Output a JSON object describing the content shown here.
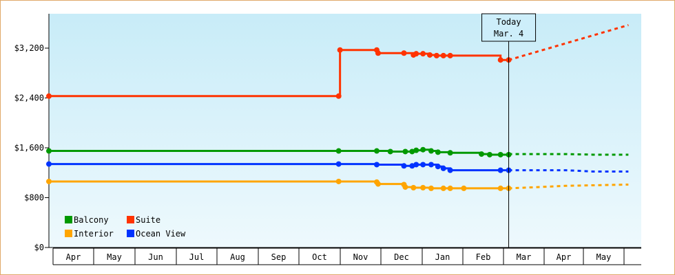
{
  "chart_data": {
    "type": "line",
    "title": "",
    "xlabel": "",
    "ylabel": "",
    "ylim": [
      0,
      3200
    ],
    "y_ticks": [
      "$0",
      "$800",
      "$1,600",
      "$2,400",
      "$3,200"
    ],
    "y_tick_values": [
      0,
      800,
      1600,
      2400,
      3200
    ],
    "x_months": [
      "Apr",
      "May",
      "Jun",
      "Jul",
      "Aug",
      "Sep",
      "Oct",
      "Nov",
      "Dec",
      "Jan",
      "Feb",
      "Mar",
      "Apr",
      "May"
    ],
    "x_range_days": [
      0,
      426
    ],
    "today_marker": {
      "line1": "Today",
      "line2": "Mar. 4",
      "day": 338
    },
    "legend_position": "bottom-left",
    "background_gradient": [
      "#c8ecf8",
      "#eef9fd"
    ],
    "series": [
      {
        "name": "Suite",
        "color": "#ff3300",
        "points": [
          [
            0,
            2430
          ],
          [
            213,
            2430
          ],
          [
            214,
            3170
          ],
          [
            241,
            3170
          ],
          [
            242,
            3120
          ],
          [
            261,
            3120
          ],
          [
            268,
            3090
          ],
          [
            270,
            3110
          ],
          [
            275,
            3110
          ],
          [
            280,
            3090
          ],
          [
            285,
            3080
          ],
          [
            290,
            3080
          ],
          [
            295,
            3080
          ],
          [
            332,
            3010
          ],
          [
            338,
            3010
          ]
        ],
        "markers": [
          0,
          213,
          214,
          241,
          242,
          261,
          268,
          270,
          275,
          280,
          285,
          290,
          295,
          332,
          338
        ],
        "forecast": [
          [
            338,
            3010
          ],
          [
            426,
            3570
          ]
        ]
      },
      {
        "name": "Balcony",
        "color": "#009900",
        "points": [
          [
            0,
            1550
          ],
          [
            213,
            1550
          ],
          [
            241,
            1550
          ],
          [
            251,
            1540
          ],
          [
            262,
            1540
          ],
          [
            267,
            1540
          ],
          [
            270,
            1560
          ],
          [
            275,
            1570
          ],
          [
            281,
            1550
          ],
          [
            286,
            1530
          ],
          [
            295,
            1520
          ],
          [
            318,
            1500
          ],
          [
            324,
            1490
          ],
          [
            332,
            1490
          ],
          [
            338,
            1490
          ]
        ],
        "markers": [
          0,
          213,
          241,
          251,
          262,
          267,
          270,
          275,
          281,
          286,
          295,
          318,
          324,
          332,
          338
        ],
        "forecast": [
          [
            338,
            1500
          ],
          [
            380,
            1500
          ],
          [
            400,
            1490
          ],
          [
            426,
            1490
          ]
        ]
      },
      {
        "name": "Ocean View",
        "color": "#0033ff",
        "points": [
          [
            0,
            1340
          ],
          [
            213,
            1340
          ],
          [
            241,
            1330
          ],
          [
            261,
            1310
          ],
          [
            267,
            1310
          ],
          [
            270,
            1330
          ],
          [
            275,
            1330
          ],
          [
            281,
            1330
          ],
          [
            286,
            1300
          ],
          [
            290,
            1270
          ],
          [
            295,
            1240
          ],
          [
            318,
            1240
          ],
          [
            332,
            1240
          ],
          [
            338,
            1240
          ]
        ],
        "markers": [
          0,
          213,
          241,
          261,
          267,
          270,
          275,
          281,
          286,
          290,
          295,
          332,
          338
        ],
        "forecast": [
          [
            338,
            1240
          ],
          [
            380,
            1240
          ],
          [
            400,
            1220
          ],
          [
            426,
            1220
          ]
        ]
      },
      {
        "name": "Interior",
        "color": "#ffa500",
        "points": [
          [
            0,
            1060
          ],
          [
            213,
            1060
          ],
          [
            241,
            1050
          ],
          [
            242,
            1020
          ],
          [
            261,
            1010
          ],
          [
            262,
            970
          ],
          [
            268,
            960
          ],
          [
            275,
            960
          ],
          [
            281,
            950
          ],
          [
            290,
            950
          ],
          [
            295,
            950
          ],
          [
            305,
            950
          ],
          [
            332,
            950
          ],
          [
            338,
            950
          ]
        ],
        "markers": [
          0,
          213,
          241,
          242,
          261,
          262,
          268,
          275,
          281,
          290,
          295,
          305,
          332,
          338
        ],
        "forecast": [
          [
            338,
            950
          ],
          [
            360,
            970
          ],
          [
            380,
            990
          ],
          [
            426,
            1010
          ]
        ]
      }
    ],
    "legend": [
      {
        "name": "Balcony",
        "color": "#009900"
      },
      {
        "name": "Suite",
        "color": "#ff3300"
      },
      {
        "name": "Interior",
        "color": "#ffa500"
      },
      {
        "name": "Ocean View",
        "color": "#0033ff"
      }
    ]
  }
}
